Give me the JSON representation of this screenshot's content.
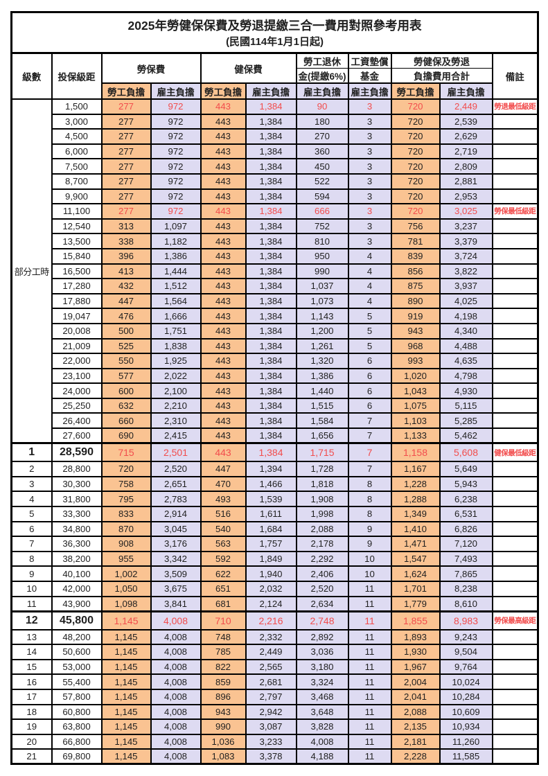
{
  "title": "2025年勞健保保費及勞退提繳三合一費用對照參考用表",
  "subtitle": "(民國114年1月1日起)",
  "colors": {
    "employee_bg": "#fac392",
    "employer_bg": "#dedbf2",
    "highlight_text": "#f24c4c",
    "border": "#000000"
  },
  "header": {
    "level": "級數",
    "bracket": "投保級距",
    "labor_ins": "勞保費",
    "health_ins": "健保費",
    "pension_line1": "勞工退休",
    "pension_line2": "金(提繳6%)",
    "wage_fund_line1": "工資墊償",
    "wage_fund_line2": "基金",
    "total_line1": "勞健保及勞退",
    "total_line2": "負擔費用合計",
    "note": "備註",
    "employee": "勞工負擔",
    "employer": "雇主負擔"
  },
  "part_time_label": "部分工時",
  "part_time_rowspan": 23,
  "rows": [
    {
      "level": "",
      "bracket": "1,500",
      "li_emp": "277",
      "li_er": "972",
      "hi_emp": "443",
      "hi_er": "1,384",
      "pension": "90",
      "fund": "3",
      "tot_emp": "720",
      "tot_er": "2,449",
      "note": "勞退最低級距",
      "red": true,
      "tall": false
    },
    {
      "level": "",
      "bracket": "3,000",
      "li_emp": "277",
      "li_er": "972",
      "hi_emp": "443",
      "hi_er": "1,384",
      "pension": "180",
      "fund": "3",
      "tot_emp": "720",
      "tot_er": "2,539",
      "note": "",
      "red": false,
      "tall": false
    },
    {
      "level": "",
      "bracket": "4,500",
      "li_emp": "277",
      "li_er": "972",
      "hi_emp": "443",
      "hi_er": "1,384",
      "pension": "270",
      "fund": "3",
      "tot_emp": "720",
      "tot_er": "2,629",
      "note": "",
      "red": false,
      "tall": false
    },
    {
      "level": "",
      "bracket": "6,000",
      "li_emp": "277",
      "li_er": "972",
      "hi_emp": "443",
      "hi_er": "1,384",
      "pension": "360",
      "fund": "3",
      "tot_emp": "720",
      "tot_er": "2,719",
      "note": "",
      "red": false,
      "tall": false
    },
    {
      "level": "",
      "bracket": "7,500",
      "li_emp": "277",
      "li_er": "972",
      "hi_emp": "443",
      "hi_er": "1,384",
      "pension": "450",
      "fund": "3",
      "tot_emp": "720",
      "tot_er": "2,809",
      "note": "",
      "red": false,
      "tall": false
    },
    {
      "level": "",
      "bracket": "8,700",
      "li_emp": "277",
      "li_er": "972",
      "hi_emp": "443",
      "hi_er": "1,384",
      "pension": "522",
      "fund": "3",
      "tot_emp": "720",
      "tot_er": "2,881",
      "note": "",
      "red": false,
      "tall": false
    },
    {
      "level": "",
      "bracket": "9,900",
      "li_emp": "277",
      "li_er": "972",
      "hi_emp": "443",
      "hi_er": "1,384",
      "pension": "594",
      "fund": "3",
      "tot_emp": "720",
      "tot_er": "2,953",
      "note": "",
      "red": false,
      "tall": false
    },
    {
      "level": "",
      "bracket": "11,100",
      "li_emp": "277",
      "li_er": "972",
      "hi_emp": "443",
      "hi_er": "1,384",
      "pension": "666",
      "fund": "3",
      "tot_emp": "720",
      "tot_er": "3,025",
      "note": "勞保最低級距",
      "red": true,
      "tall": false
    },
    {
      "level": "",
      "bracket": "12,540",
      "li_emp": "313",
      "li_er": "1,097",
      "hi_emp": "443",
      "hi_er": "1,384",
      "pension": "752",
      "fund": "3",
      "tot_emp": "756",
      "tot_er": "3,237",
      "note": "",
      "red": false,
      "tall": false
    },
    {
      "level": "",
      "bracket": "13,500",
      "li_emp": "338",
      "li_er": "1,182",
      "hi_emp": "443",
      "hi_er": "1,384",
      "pension": "810",
      "fund": "3",
      "tot_emp": "781",
      "tot_er": "3,379",
      "note": "",
      "red": false,
      "tall": false
    },
    {
      "level": "",
      "bracket": "15,840",
      "li_emp": "396",
      "li_er": "1,386",
      "hi_emp": "443",
      "hi_er": "1,384",
      "pension": "950",
      "fund": "4",
      "tot_emp": "839",
      "tot_er": "3,724",
      "note": "",
      "red": false,
      "tall": false
    },
    {
      "level": "",
      "bracket": "16,500",
      "li_emp": "413",
      "li_er": "1,444",
      "hi_emp": "443",
      "hi_er": "1,384",
      "pension": "990",
      "fund": "4",
      "tot_emp": "856",
      "tot_er": "3,822",
      "note": "",
      "red": false,
      "tall": false
    },
    {
      "level": "",
      "bracket": "17,280",
      "li_emp": "432",
      "li_er": "1,512",
      "hi_emp": "443",
      "hi_er": "1,384",
      "pension": "1,037",
      "fund": "4",
      "tot_emp": "875",
      "tot_er": "3,937",
      "note": "",
      "red": false,
      "tall": false
    },
    {
      "level": "",
      "bracket": "17,880",
      "li_emp": "447",
      "li_er": "1,564",
      "hi_emp": "443",
      "hi_er": "1,384",
      "pension": "1,073",
      "fund": "4",
      "tot_emp": "890",
      "tot_er": "4,025",
      "note": "",
      "red": false,
      "tall": false
    },
    {
      "level": "",
      "bracket": "19,047",
      "li_emp": "476",
      "li_er": "1,666",
      "hi_emp": "443",
      "hi_er": "1,384",
      "pension": "1,143",
      "fund": "5",
      "tot_emp": "919",
      "tot_er": "4,198",
      "note": "",
      "red": false,
      "tall": false
    },
    {
      "level": "",
      "bracket": "20,008",
      "li_emp": "500",
      "li_er": "1,751",
      "hi_emp": "443",
      "hi_er": "1,384",
      "pension": "1,200",
      "fund": "5",
      "tot_emp": "943",
      "tot_er": "4,340",
      "note": "",
      "red": false,
      "tall": false
    },
    {
      "level": "",
      "bracket": "21,009",
      "li_emp": "525",
      "li_er": "1,838",
      "hi_emp": "443",
      "hi_er": "1,384",
      "pension": "1,261",
      "fund": "5",
      "tot_emp": "968",
      "tot_er": "4,488",
      "note": "",
      "red": false,
      "tall": false
    },
    {
      "level": "",
      "bracket": "22,000",
      "li_emp": "550",
      "li_er": "1,925",
      "hi_emp": "443",
      "hi_er": "1,384",
      "pension": "1,320",
      "fund": "6",
      "tot_emp": "993",
      "tot_er": "4,635",
      "note": "",
      "red": false,
      "tall": false
    },
    {
      "level": "",
      "bracket": "23,100",
      "li_emp": "577",
      "li_er": "2,022",
      "hi_emp": "443",
      "hi_er": "1,384",
      "pension": "1,386",
      "fund": "6",
      "tot_emp": "1,020",
      "tot_er": "4,798",
      "note": "",
      "red": false,
      "tall": false
    },
    {
      "level": "",
      "bracket": "24,000",
      "li_emp": "600",
      "li_er": "2,100",
      "hi_emp": "443",
      "hi_er": "1,384",
      "pension": "1,440",
      "fund": "6",
      "tot_emp": "1,043",
      "tot_er": "4,930",
      "note": "",
      "red": false,
      "tall": false
    },
    {
      "level": "",
      "bracket": "25,250",
      "li_emp": "632",
      "li_er": "2,210",
      "hi_emp": "443",
      "hi_er": "1,384",
      "pension": "1,515",
      "fund": "6",
      "tot_emp": "1,075",
      "tot_er": "5,115",
      "note": "",
      "red": false,
      "tall": false
    },
    {
      "level": "",
      "bracket": "26,400",
      "li_emp": "660",
      "li_er": "2,310",
      "hi_emp": "443",
      "hi_er": "1,384",
      "pension": "1,584",
      "fund": "7",
      "tot_emp": "1,103",
      "tot_er": "5,285",
      "note": "",
      "red": false,
      "tall": false
    },
    {
      "level": "",
      "bracket": "27,600",
      "li_emp": "690",
      "li_er": "2,415",
      "hi_emp": "443",
      "hi_er": "1,384",
      "pension": "1,656",
      "fund": "7",
      "tot_emp": "1,133",
      "tot_er": "5,462",
      "note": "",
      "red": false,
      "tall": false
    },
    {
      "level": "1",
      "bracket": "28,590",
      "li_emp": "715",
      "li_er": "2,501",
      "hi_emp": "443",
      "hi_er": "1,384",
      "pension": "1,715",
      "fund": "7",
      "tot_emp": "1,158",
      "tot_er": "5,608",
      "note": "健保最低級距",
      "red": true,
      "tall": true
    },
    {
      "level": "2",
      "bracket": "28,800",
      "li_emp": "720",
      "li_er": "2,520",
      "hi_emp": "447",
      "hi_er": "1,394",
      "pension": "1,728",
      "fund": "7",
      "tot_emp": "1,167",
      "tot_er": "5,649",
      "note": "",
      "red": false,
      "tall": false
    },
    {
      "level": "3",
      "bracket": "30,300",
      "li_emp": "758",
      "li_er": "2,651",
      "hi_emp": "470",
      "hi_er": "1,466",
      "pension": "1,818",
      "fund": "8",
      "tot_emp": "1,228",
      "tot_er": "5,943",
      "note": "",
      "red": false,
      "tall": false
    },
    {
      "level": "4",
      "bracket": "31,800",
      "li_emp": "795",
      "li_er": "2,783",
      "hi_emp": "493",
      "hi_er": "1,539",
      "pension": "1,908",
      "fund": "8",
      "tot_emp": "1,288",
      "tot_er": "6,238",
      "note": "",
      "red": false,
      "tall": false
    },
    {
      "level": "5",
      "bracket": "33,300",
      "li_emp": "833",
      "li_er": "2,914",
      "hi_emp": "516",
      "hi_er": "1,611",
      "pension": "1,998",
      "fund": "8",
      "tot_emp": "1,349",
      "tot_er": "6,531",
      "note": "",
      "red": false,
      "tall": false
    },
    {
      "level": "6",
      "bracket": "34,800",
      "li_emp": "870",
      "li_er": "3,045",
      "hi_emp": "540",
      "hi_er": "1,684",
      "pension": "2,088",
      "fund": "9",
      "tot_emp": "1,410",
      "tot_er": "6,826",
      "note": "",
      "red": false,
      "tall": false
    },
    {
      "level": "7",
      "bracket": "36,300",
      "li_emp": "908",
      "li_er": "3,176",
      "hi_emp": "563",
      "hi_er": "1,757",
      "pension": "2,178",
      "fund": "9",
      "tot_emp": "1,471",
      "tot_er": "7,120",
      "note": "",
      "red": false,
      "tall": false
    },
    {
      "level": "8",
      "bracket": "38,200",
      "li_emp": "955",
      "li_er": "3,342",
      "hi_emp": "592",
      "hi_er": "1,849",
      "pension": "2,292",
      "fund": "10",
      "tot_emp": "1,547",
      "tot_er": "7,493",
      "note": "",
      "red": false,
      "tall": false
    },
    {
      "level": "9",
      "bracket": "40,100",
      "li_emp": "1,002",
      "li_er": "3,509",
      "hi_emp": "622",
      "hi_er": "1,940",
      "pension": "2,406",
      "fund": "10",
      "tot_emp": "1,624",
      "tot_er": "7,865",
      "note": "",
      "red": false,
      "tall": false
    },
    {
      "level": "10",
      "bracket": "42,000",
      "li_emp": "1,050",
      "li_er": "3,675",
      "hi_emp": "651",
      "hi_er": "2,032",
      "pension": "2,520",
      "fund": "11",
      "tot_emp": "1,701",
      "tot_er": "8,238",
      "note": "",
      "red": false,
      "tall": false
    },
    {
      "level": "11",
      "bracket": "43,900",
      "li_emp": "1,098",
      "li_er": "3,841",
      "hi_emp": "681",
      "hi_er": "2,124",
      "pension": "2,634",
      "fund": "11",
      "tot_emp": "1,779",
      "tot_er": "8,610",
      "note": "",
      "red": false,
      "tall": false
    },
    {
      "level": "12",
      "bracket": "45,800",
      "li_emp": "1,145",
      "li_er": "4,008",
      "hi_emp": "710",
      "hi_er": "2,216",
      "pension": "2,748",
      "fund": "11",
      "tot_emp": "1,855",
      "tot_er": "8,983",
      "note": "勞保最高級距",
      "red": true,
      "tall": true
    },
    {
      "level": "13",
      "bracket": "48,200",
      "li_emp": "1,145",
      "li_er": "4,008",
      "hi_emp": "748",
      "hi_er": "2,332",
      "pension": "2,892",
      "fund": "11",
      "tot_emp": "1,893",
      "tot_er": "9,243",
      "note": "",
      "red": false,
      "tall": false
    },
    {
      "level": "14",
      "bracket": "50,600",
      "li_emp": "1,145",
      "li_er": "4,008",
      "hi_emp": "785",
      "hi_er": "2,449",
      "pension": "3,036",
      "fund": "11",
      "tot_emp": "1,930",
      "tot_er": "9,504",
      "note": "",
      "red": false,
      "tall": false
    },
    {
      "level": "15",
      "bracket": "53,000",
      "li_emp": "1,145",
      "li_er": "4,008",
      "hi_emp": "822",
      "hi_er": "2,565",
      "pension": "3,180",
      "fund": "11",
      "tot_emp": "1,967",
      "tot_er": "9,764",
      "note": "",
      "red": false,
      "tall": false
    },
    {
      "level": "16",
      "bracket": "55,400",
      "li_emp": "1,145",
      "li_er": "4,008",
      "hi_emp": "859",
      "hi_er": "2,681",
      "pension": "3,324",
      "fund": "11",
      "tot_emp": "2,004",
      "tot_er": "10,024",
      "note": "",
      "red": false,
      "tall": false
    },
    {
      "level": "17",
      "bracket": "57,800",
      "li_emp": "1,145",
      "li_er": "4,008",
      "hi_emp": "896",
      "hi_er": "2,797",
      "pension": "3,468",
      "fund": "11",
      "tot_emp": "2,041",
      "tot_er": "10,284",
      "note": "",
      "red": false,
      "tall": false
    },
    {
      "level": "18",
      "bracket": "60,800",
      "li_emp": "1,145",
      "li_er": "4,008",
      "hi_emp": "943",
      "hi_er": "2,942",
      "pension": "3,648",
      "fund": "11",
      "tot_emp": "2,088",
      "tot_er": "10,609",
      "note": "",
      "red": false,
      "tall": false
    },
    {
      "level": "19",
      "bracket": "63,800",
      "li_emp": "1,145",
      "li_er": "4,008",
      "hi_emp": "990",
      "hi_er": "3,087",
      "pension": "3,828",
      "fund": "11",
      "tot_emp": "2,135",
      "tot_er": "10,934",
      "note": "",
      "red": false,
      "tall": false
    },
    {
      "level": "20",
      "bracket": "66,800",
      "li_emp": "1,145",
      "li_er": "4,008",
      "hi_emp": "1,036",
      "hi_er": "3,233",
      "pension": "4,008",
      "fund": "11",
      "tot_emp": "2,181",
      "tot_er": "11,260",
      "note": "",
      "red": false,
      "tall": false
    },
    {
      "level": "21",
      "bracket": "69,800",
      "li_emp": "1,145",
      "li_er": "4,008",
      "hi_emp": "1,083",
      "hi_er": "3,378",
      "pension": "4,188",
      "fund": "11",
      "tot_emp": "2,228",
      "tot_er": "11,585",
      "note": "",
      "red": false,
      "tall": false
    }
  ]
}
